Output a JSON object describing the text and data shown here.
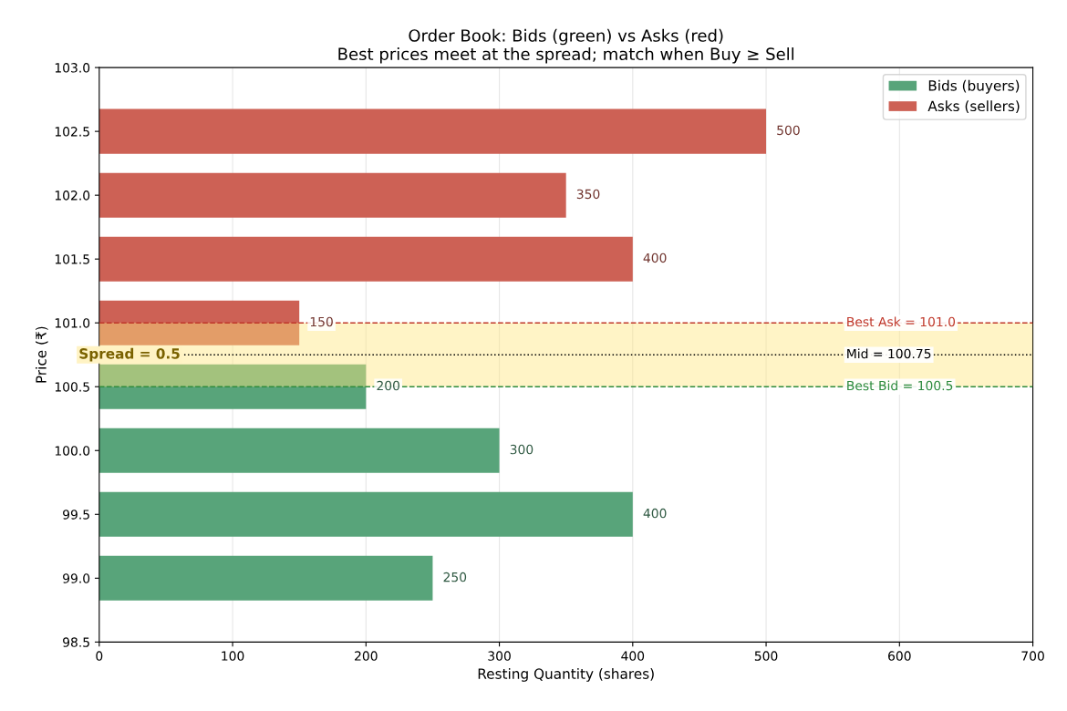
{
  "chart_data": {
    "type": "bar",
    "orientation": "horizontal",
    "title": "Order Book: Bids (green) vs Asks (red)",
    "subtitle": "Best prices meet at the spread; match when Buy ≥ Sell",
    "xlabel": "Resting Quantity (shares)",
    "ylabel": "Price (₹)",
    "series": [
      {
        "name": "Bids (buyers)",
        "color": "#58a47a",
        "x": [
          99.0,
          99.5,
          100.0,
          100.5
        ],
        "values": [
          250,
          400,
          300,
          200
        ]
      },
      {
        "name": "Asks (sellers)",
        "color": "#cd6155",
        "x": [
          101.0,
          101.5,
          102.0,
          102.5
        ],
        "values": [
          150,
          400,
          350,
          500
        ]
      }
    ],
    "xlim": [
      0,
      700
    ],
    "xticks": [
      0,
      100,
      200,
      300,
      400,
      500,
      600,
      700
    ],
    "ylim": [
      98.5,
      103.0
    ],
    "yticks": [
      {
        "value": 98.5,
        "label": "98.5"
      },
      {
        "value": 99.0,
        "label": "99.0"
      },
      {
        "value": 99.5,
        "label": "99.5"
      },
      {
        "value": 100.0,
        "label": "100.0"
      },
      {
        "value": 100.5,
        "label": "100.5"
      },
      {
        "value": 101.0,
        "label": "101.0"
      },
      {
        "value": 101.5,
        "label": "101.5"
      },
      {
        "value": 102.0,
        "label": "102.0"
      },
      {
        "value": 102.5,
        "label": "102.5"
      },
      {
        "value": 103.0,
        "label": "103.0"
      }
    ],
    "ref_lines": [
      {
        "axis": "y",
        "value": 101.0,
        "label": "Best Ask = 101.0",
        "color": "#c0392b",
        "line_style": "dashed"
      },
      {
        "axis": "y",
        "value": 100.75,
        "label": "Mid = 100.75",
        "color": "#000000",
        "line_style": "dotted"
      },
      {
        "axis": "y",
        "value": 100.5,
        "label": "Best Bid = 100.5",
        "color": "#2e8b3e",
        "line_style": "dashed"
      }
    ],
    "bands": [
      {
        "axis": "y",
        "from": 100.5,
        "to": 101.0,
        "label": "Spread = 0.5",
        "color": "#ffe680"
      }
    ],
    "data_labels": true,
    "grid": "x",
    "legend": "top right"
  }
}
